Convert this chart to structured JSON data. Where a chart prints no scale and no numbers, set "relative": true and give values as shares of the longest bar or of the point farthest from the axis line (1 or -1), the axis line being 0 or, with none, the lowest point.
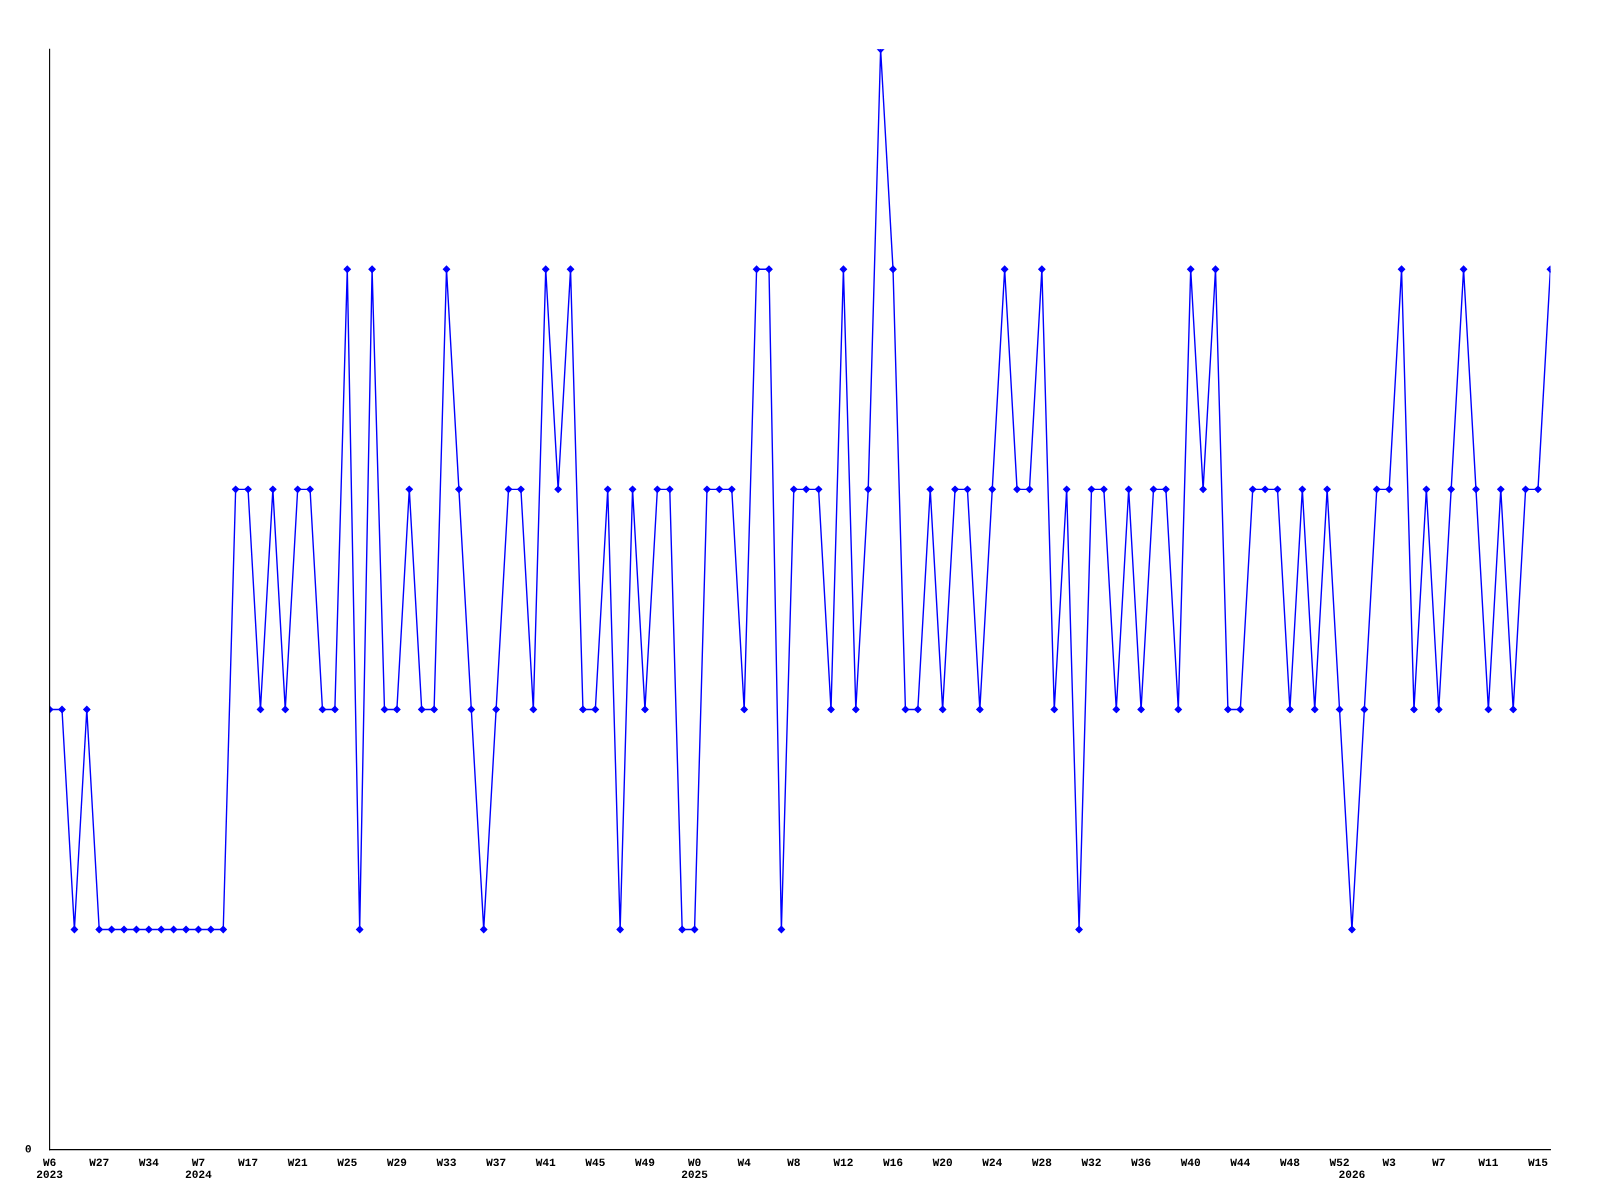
{
  "chart_data": {
    "type": "line",
    "relative": true,
    "categories": [
      "W6\n2023",
      null,
      null,
      null,
      "W27",
      null,
      null,
      null,
      "W34",
      null,
      null,
      null,
      "W7\n2024",
      null,
      null,
      null,
      "W17",
      null,
      null,
      null,
      "W21",
      null,
      null,
      null,
      "W25",
      null,
      null,
      null,
      "W29",
      null,
      null,
      null,
      "W33",
      null,
      null,
      null,
      "W37",
      null,
      null,
      null,
      "W41",
      null,
      null,
      null,
      "W45",
      null,
      null,
      null,
      "W49",
      null,
      null,
      null,
      "W0\n2025",
      null,
      null,
      null,
      "W4",
      null,
      null,
      null,
      "W8",
      null,
      null,
      null,
      "W12",
      null,
      null,
      null,
      "W16",
      null,
      null,
      null,
      "W20",
      null,
      null,
      null,
      "W24",
      null,
      null,
      null,
      "W28",
      null,
      null,
      null,
      "W32",
      null,
      null,
      null,
      "W36",
      null,
      null,
      null,
      "W40",
      null,
      null,
      null,
      "W44",
      null,
      null,
      null,
      "W48",
      null,
      null,
      null,
      "W52",
      "\n2026",
      null,
      null,
      "W3",
      null,
      null,
      null,
      "W7",
      null,
      null,
      null,
      "W11",
      null,
      null,
      null,
      "W15",
      null
    ],
    "series": [
      {
        "color": "#0000ff",
        "values": [
          0.4,
          0.4,
          0.2,
          0.4,
          0.2,
          0.2,
          0.2,
          0.2,
          0.2,
          0.2,
          0.2,
          0.2,
          0.2,
          0.2,
          0.2,
          0.6,
          0.6,
          0.4,
          0.6,
          0.4,
          0.6,
          0.6,
          0.4,
          0.4,
          0.8,
          0.2,
          0.8,
          0.4,
          0.4,
          0.6,
          0.4,
          0.4,
          0.8,
          0.6,
          0.4,
          0.2,
          0.4,
          0.6,
          0.6,
          0.4,
          0.8,
          0.6,
          0.8,
          0.4,
          0.4,
          0.6,
          0.2,
          0.6,
          0.4,
          0.6,
          0.6,
          0.2,
          0.2,
          0.6,
          0.6,
          0.6,
          0.4,
          0.8,
          0.8,
          0.2,
          0.6,
          0.6,
          0.6,
          0.4,
          0.8,
          0.4,
          0.6,
          1,
          0.8,
          0.4,
          0.4,
          0.6,
          0.4,
          0.6,
          0.6,
          0.4,
          0.6,
          0.8,
          0.6,
          0.6,
          0.8,
          0.4,
          0.6,
          0.2,
          0.6,
          0.6,
          0.4,
          0.6,
          0.4,
          0.6,
          0.6,
          0.4,
          0.8,
          0.6,
          0.8,
          0.4,
          0.4,
          0.6,
          0.6,
          0.6,
          0.4,
          0.6,
          0.4,
          0.6,
          0.4,
          0.2,
          0.4,
          0.6,
          0.6,
          0.8,
          0.4,
          0.6,
          0.4,
          0.6,
          0.8,
          0.6,
          0.4,
          0.6,
          0.4,
          0.6,
          0.6,
          0.8
        ]
      }
    ],
    "annotations": [
      "0"
    ],
    "marker": "diamond",
    "line_style": "solid",
    "grid": false,
    "legend": false
  }
}
